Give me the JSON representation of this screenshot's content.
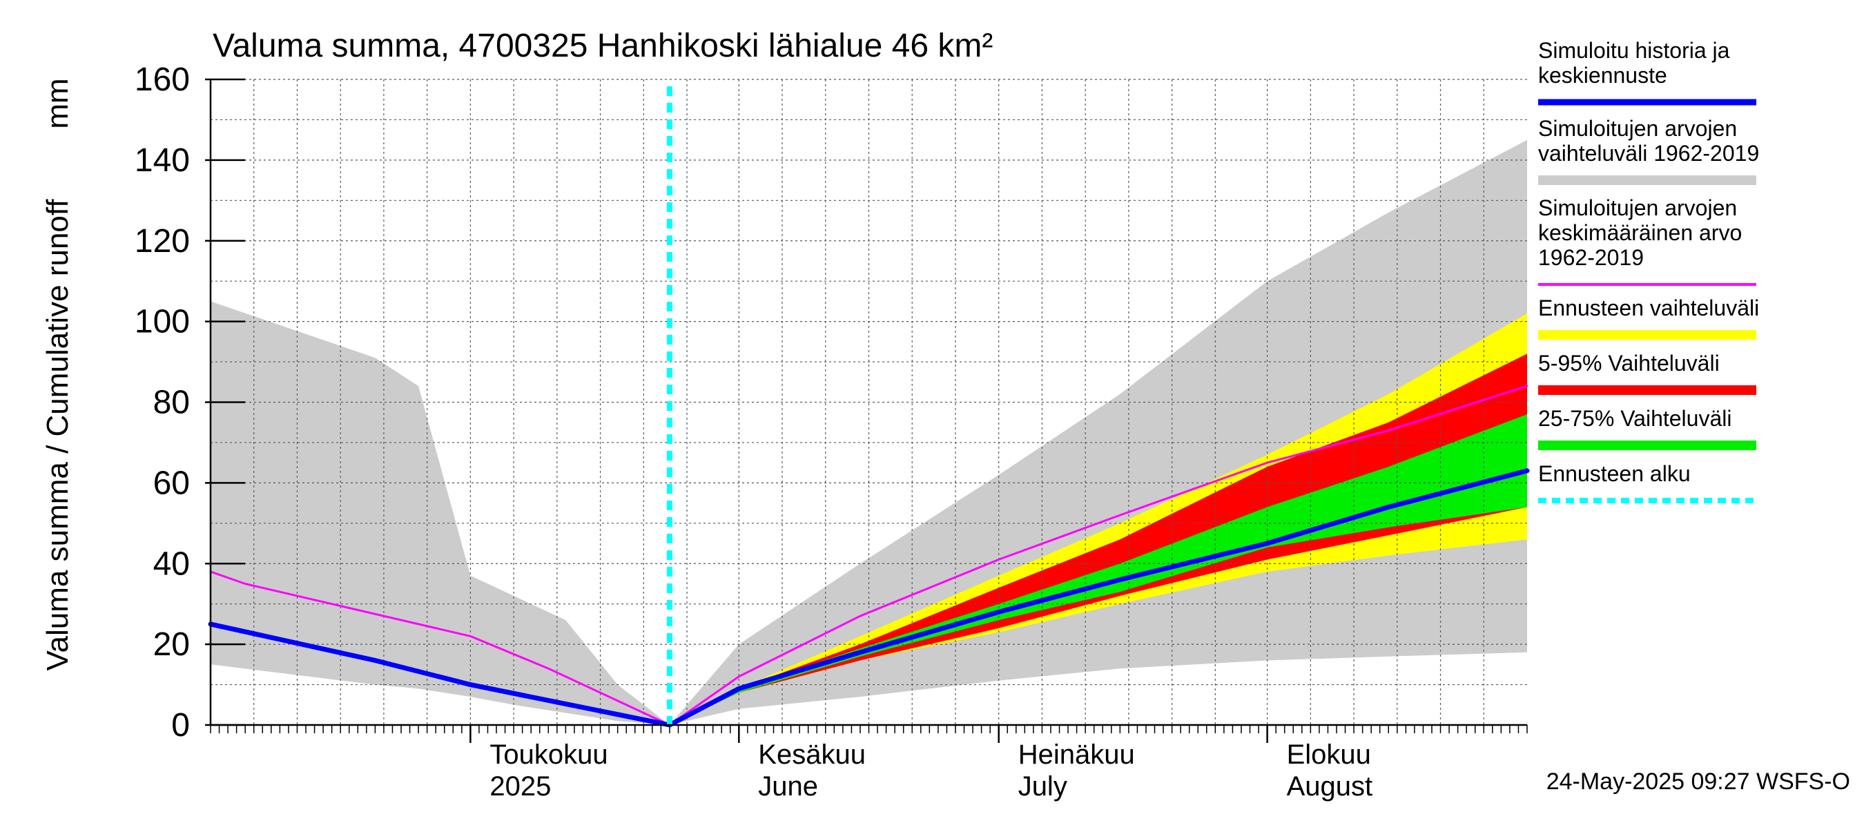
{
  "chart_data": {
    "type": "area",
    "title": "Valuma summa, 4700325 Hanhikoski lähialue 46 km²",
    "ylabel_fi": "Valuma summa / Cumulative runoff",
    "ylabel_unit": "mm",
    "ylim": [
      0,
      160
    ],
    "yticks": [
      0,
      20,
      40,
      60,
      80,
      100,
      120,
      140,
      160
    ],
    "xlim": [
      "2025-04-01",
      "2025-08-31"
    ],
    "x_axis_type": "date",
    "grid": true,
    "legend_position": "right",
    "month_labels": [
      {
        "date": "2025-05-01",
        "fi": "Toukokuu",
        "en": "2025"
      },
      {
        "date": "2025-06-01",
        "fi": "Kesäkuu",
        "en": "June"
      },
      {
        "date": "2025-07-01",
        "fi": "Heinäkuu",
        "en": "July"
      },
      {
        "date": "2025-08-01",
        "fi": "Elokuu",
        "en": "August"
      }
    ],
    "forecast_start": "2025-05-24",
    "timestamp": "24-May-2025 09:27 WSFS-O",
    "legend": [
      {
        "label": "Simuloitu historia ja\nkeskiennuste",
        "color": "#0000ff",
        "style": "line"
      },
      {
        "label": "Simuloitujen arvojen\nvaihteluväli 1962-2019",
        "color": "#cccccc",
        "style": "band"
      },
      {
        "label": "Simuloitujen arvojen\nkeskimääräinen arvo\n   1962-2019",
        "color": "#ff00ff",
        "style": "thin"
      },
      {
        "label": "Ennusteen vaihteluväli",
        "color": "#ffff00",
        "style": "band"
      },
      {
        "label": "5-95% Vaihteluväli",
        "color": "#ff0000",
        "style": "band"
      },
      {
        "label": "25-75% Vaihteluväli",
        "color": "#00ee00",
        "style": "band"
      },
      {
        "label": "Ennusteen alku",
        "color": "#00ffff",
        "style": "dash"
      }
    ],
    "series": [
      {
        "name": "Simuloitujen arvojen vaihteluväli 1962-2019",
        "kind": "band",
        "color": "#cccccc",
        "x": [
          "2025-04-01",
          "2025-04-20",
          "2025-04-25",
          "2025-05-01",
          "2025-05-06",
          "2025-05-12",
          "2025-05-18",
          "2025-05-24",
          "2025-06-01",
          "2025-06-15",
          "2025-07-01",
          "2025-07-15",
          "2025-08-01",
          "2025-08-15",
          "2025-08-31"
        ],
        "upper": [
          105,
          91,
          84,
          37,
          32,
          26,
          10,
          0,
          20,
          40,
          62,
          82,
          110,
          127,
          145
        ],
        "lower": [
          15,
          10,
          9,
          7,
          5,
          3,
          1,
          0,
          4,
          7,
          11,
          14,
          16,
          17,
          18
        ]
      },
      {
        "name": "Ennusteen vaihteluväli",
        "kind": "band",
        "color": "#ffff00",
        "x": [
          "2025-05-24",
          "2025-06-01",
          "2025-06-15",
          "2025-07-01",
          "2025-07-15",
          "2025-08-01",
          "2025-08-15",
          "2025-08-31"
        ],
        "upper": [
          0,
          9,
          22,
          37,
          50,
          67,
          82,
          102
        ],
        "lower": [
          0,
          8,
          16,
          23,
          30,
          38,
          42,
          46
        ]
      },
      {
        "name": "5-95% Vaihteluväli",
        "kind": "band",
        "color": "#ff0000",
        "x": [
          "2025-05-24",
          "2025-06-01",
          "2025-06-15",
          "2025-07-01",
          "2025-07-15",
          "2025-08-01",
          "2025-08-15",
          "2025-08-31"
        ],
        "upper": [
          0,
          9,
          20,
          34,
          46,
          64,
          75,
          92
        ],
        "lower": [
          0,
          8,
          16,
          24,
          32,
          41,
          47,
          54
        ]
      },
      {
        "name": "25-75% Vaihteluväli",
        "kind": "band",
        "color": "#00ee00",
        "x": [
          "2025-05-24",
          "2025-06-01",
          "2025-06-15",
          "2025-07-01",
          "2025-07-15",
          "2025-08-01",
          "2025-08-15",
          "2025-08-31"
        ],
        "upper": [
          0,
          9,
          19,
          30,
          40,
          54,
          64,
          77
        ],
        "lower": [
          0,
          8,
          17,
          26,
          33,
          44,
          49,
          54
        ]
      },
      {
        "name": "Simuloitujen arvojen keskimääräinen arvo 1962-2019",
        "kind": "line",
        "color": "#ff00ff",
        "width": 3,
        "x": [
          "2025-04-01",
          "2025-04-05",
          "2025-04-15",
          "2025-05-01",
          "2025-05-10",
          "2025-05-24",
          "2025-06-01",
          "2025-06-15",
          "2025-07-01",
          "2025-07-15",
          "2025-08-01",
          "2025-08-15",
          "2025-08-31"
        ],
        "y": [
          38,
          35,
          30,
          22,
          14,
          0,
          12,
          27,
          41,
          52,
          65,
          73,
          84
        ]
      },
      {
        "name": "Simuloitu historia ja keskiennuste",
        "kind": "line",
        "color": "#0000ff",
        "width": 7,
        "x": [
          "2025-04-01",
          "2025-04-20",
          "2025-05-01",
          "2025-05-24",
          "2025-06-01",
          "2025-06-15",
          "2025-07-01",
          "2025-07-15",
          "2025-08-01",
          "2025-08-15",
          "2025-08-31"
        ],
        "y": [
          25,
          16,
          10,
          0,
          9,
          18,
          28,
          36,
          45,
          54,
          63
        ]
      }
    ]
  }
}
